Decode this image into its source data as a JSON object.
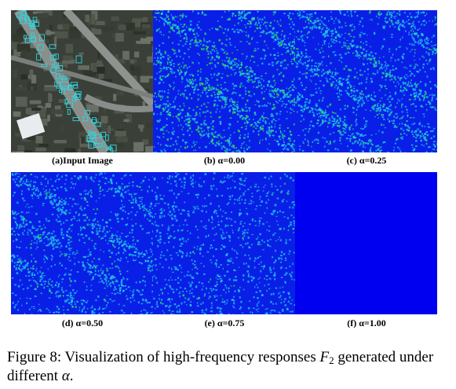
{
  "panels": [
    {
      "id": "a",
      "label": "(a)Input Image",
      "kind": "aerial"
    },
    {
      "id": "b",
      "label": "(b) α=0.00",
      "kind": "response",
      "alpha": 0.0
    },
    {
      "id": "c",
      "label": "(c) α=0.25",
      "kind": "response",
      "alpha": 0.25
    },
    {
      "id": "d",
      "label": "(d) α=0.50",
      "kind": "response",
      "alpha": 0.5
    },
    {
      "id": "e",
      "label": "(e) α=0.75",
      "kind": "response",
      "alpha": 0.75
    },
    {
      "id": "f",
      "label": "(f) α=1.00",
      "kind": "response",
      "alpha": 1.0
    }
  ],
  "caption": {
    "prefix": "Figure 8: Visualization of high-frequency responses ",
    "symbol": "F",
    "subscript": "2",
    "middle": " generated under different ",
    "alpha": "α",
    "suffix": "."
  },
  "colors": {
    "background_blue": "#0a1fe6",
    "cyan": "#1fd0f0",
    "green": "#33ee44",
    "deep_blue": "#0000f0"
  }
}
